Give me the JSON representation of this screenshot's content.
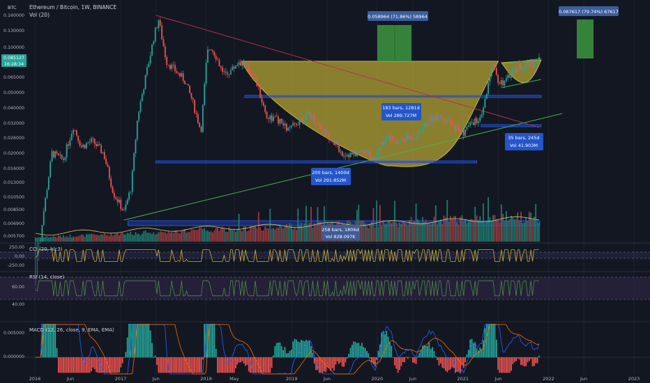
{
  "header": {
    "symbol": "Ethereum / Bitcoin, 1W, BINANCE",
    "volume": "Vol (20)",
    "currency": "BTC"
  },
  "colors": {
    "bg": "#131722",
    "up": "#26a69a",
    "down": "#ef5350",
    "cup": "#b8a735",
    "rect_blue": "#1e3ea8",
    "trend_red": "#b2344a",
    "trend_green": "#4caf50",
    "label_bg": "#3c5e9e",
    "target_green": "#3a8f3e",
    "cci": "#c9b43a",
    "rsi": "#4f8a46",
    "macd": "#2962ff",
    "signal": "#ff6d00",
    "price_tag": "#26a69a"
  },
  "price_tag": {
    "value": "0.085127",
    "countdown": "16:28:34"
  },
  "chart_data": [
    {
      "type": "candlestick",
      "title": "Ethereum / Bitcoin, 1W, BINANCE",
      "scale": "log",
      "ylim": [
        0.0053,
        0.18
      ],
      "yticks": [
        "0.160000",
        "0.130000",
        "0.100000",
        "0.085127",
        "0.065000",
        "0.050000",
        "0.040000",
        "0.032000",
        "0.026000",
        "0.020000",
        "0.016000",
        "0.013000",
        "0.010500",
        "0.008500",
        "0.006900",
        "0.005700"
      ],
      "xticks": [
        "2016",
        "Jun",
        "2017",
        "Jun",
        "2018",
        "May",
        "2019",
        "Jun",
        "2020",
        "Jun",
        "2021",
        "Jun",
        "2022",
        "Jun",
        "2023"
      ],
      "price_path": [
        [
          "2016-01-04",
          0.0024
        ],
        [
          "2016-02-01",
          0.007
        ],
        [
          "2016-03-14",
          0.02
        ],
        [
          "2016-05-01",
          0.018
        ],
        [
          "2016-06-13",
          0.03
        ],
        [
          "2016-07-18",
          0.022
        ],
        [
          "2016-09-01",
          0.024
        ],
        [
          "2016-10-20",
          0.02
        ],
        [
          "2016-12-01",
          0.011
        ],
        [
          "2017-01-16",
          0.0082
        ],
        [
          "2017-02-15",
          0.012
        ],
        [
          "2017-03-15",
          0.035
        ],
        [
          "2017-04-15",
          0.06
        ],
        [
          "2017-05-25",
          0.12
        ],
        [
          "2017-06-12",
          0.15
        ],
        [
          "2017-07-15",
          0.08
        ],
        [
          "2017-08-20",
          0.07
        ],
        [
          "2017-10-01",
          0.06
        ],
        [
          "2017-11-01",
          0.045
        ],
        [
          "2017-12-10",
          0.028
        ],
        [
          "2018-01-05",
          0.09
        ],
        [
          "2018-01-20",
          0.1
        ],
        [
          "2018-02-15",
          0.085
        ],
        [
          "2018-03-15",
          0.065
        ],
        [
          "2018-04-20",
          0.07
        ],
        [
          "2018-05-20",
          0.08
        ],
        [
          "2018-06-20",
          0.075
        ],
        [
          "2018-08-01",
          0.06
        ],
        [
          "2018-09-15",
          0.035
        ],
        [
          "2018-11-01",
          0.033
        ],
        [
          "2018-12-20",
          0.028
        ],
        [
          "2019-02-10",
          0.034
        ],
        [
          "2019-03-20",
          0.036
        ],
        [
          "2019-05-10",
          0.029
        ],
        [
          "2019-06-20",
          0.025
        ],
        [
          "2019-08-01",
          0.02
        ],
        [
          "2019-09-15",
          0.0195
        ],
        [
          "2019-11-01",
          0.0205
        ],
        [
          "2019-12-20",
          0.0185
        ],
        [
          "2020-02-15",
          0.027
        ],
        [
          "2020-03-15",
          0.023
        ],
        [
          "2020-05-01",
          0.025
        ],
        [
          "2020-06-20",
          0.026
        ],
        [
          "2020-08-15",
          0.034
        ],
        [
          "2020-10-01",
          0.035
        ],
        [
          "2020-11-20",
          0.03
        ],
        [
          "2021-01-01",
          0.027
        ],
        [
          "2021-02-10",
          0.032
        ],
        [
          "2021-03-20",
          0.033
        ],
        [
          "2021-05-10",
          0.08
        ],
        [
          "2021-06-01",
          0.06
        ],
        [
          "2021-07-01",
          0.058
        ],
        [
          "2021-08-01",
          0.07
        ],
        [
          "2021-09-15",
          0.075
        ],
        [
          "2021-11-01",
          0.078
        ],
        [
          "2021-11-22",
          0.0851
        ]
      ]
    },
    {
      "type": "bar",
      "title": "Vol (20)",
      "series": [
        {
          "name": "Vol (20)"
        }
      ]
    },
    {
      "type": "line",
      "title": "CCI (20, hlc3)",
      "yticks": [
        "250.00",
        "0.00",
        "-250.00"
      ],
      "bands": [
        100,
        -100
      ]
    },
    {
      "type": "line",
      "title": "RSI (14, close)",
      "yticks": [
        "60.00",
        "40.00"
      ],
      "bands": [
        70,
        30
      ]
    },
    {
      "type": "bar",
      "title": "MACD (12, 26, close, 9, EMA, EMA)",
      "yticks": [
        "0.005000",
        "0.000000"
      ]
    }
  ],
  "annotations": {
    "cup_measure": "0.058964 (71.86%) 58964",
    "handle_measure": "0.067617 (79.74%) 67617",
    "range_2017": {
      "line1": "258 bars, 1806d",
      "line2": "Vol 828.097K"
    },
    "range_cup_bottom": {
      "line1": "200 bars, 1400d",
      "line2": "Vol 291.852M"
    },
    "range_cup_rim": {
      "line1": "183 bars, 1281d",
      "line2": "Vol 289.727M"
    },
    "range_handle": {
      "line1": "35 bars, 245d",
      "line2": "Vol 41.903M"
    }
  }
}
